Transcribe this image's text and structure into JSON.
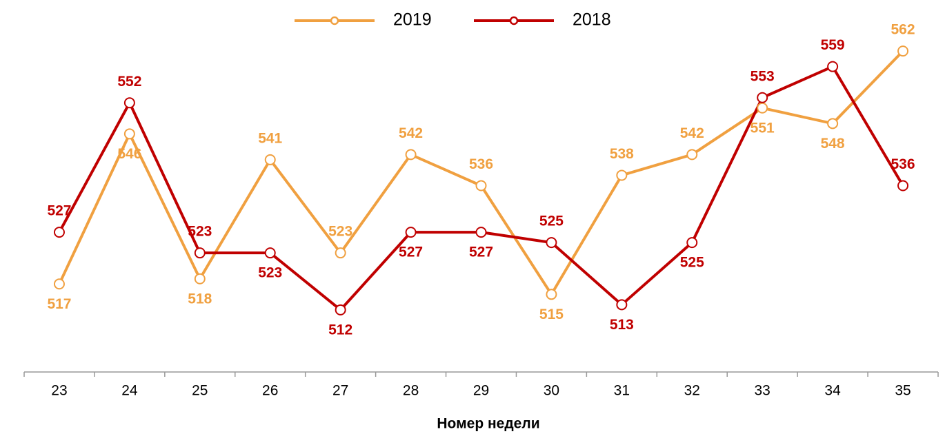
{
  "chart_data": {
    "type": "line",
    "x_label": "Номер недели",
    "categories": [
      "23",
      "24",
      "25",
      "26",
      "27",
      "28",
      "29",
      "30",
      "31",
      "32",
      "33",
      "34",
      "35"
    ],
    "series": [
      {
        "name": "2019",
        "color": "#f0a040",
        "values": [
          517,
          546,
          518,
          541,
          523,
          542,
          536,
          515,
          538,
          542,
          551,
          548,
          562
        ]
      },
      {
        "name": "2018",
        "color": "#c00000",
        "values": [
          527,
          552,
          523,
          523,
          512,
          527,
          527,
          525,
          513,
          525,
          553,
          559,
          536
        ]
      }
    ],
    "ylim": [
      500,
      570
    ],
    "legend": "top"
  }
}
